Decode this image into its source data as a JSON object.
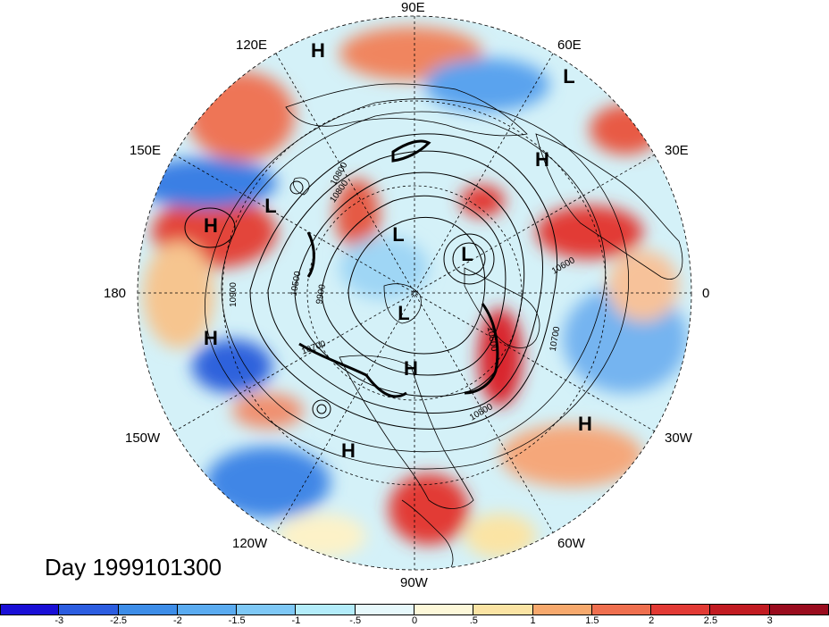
{
  "title": "Day 1999101300",
  "longitude_labels": [
    "90E",
    "60E",
    "30E",
    "0",
    "30W",
    "60W",
    "90W",
    "120W",
    "150W",
    "180",
    "150E",
    "120E"
  ],
  "pressure_systems": [
    "H",
    "L",
    "H",
    "L",
    "H",
    "L",
    "L",
    "H",
    "L",
    "H",
    "H",
    "H"
  ],
  "contour_labels": [
    "10800",
    "10500",
    "10900",
    "9900",
    "10700",
    "10800",
    "10600",
    "10700",
    "10500",
    "10800"
  ],
  "colorbar": {
    "ticks": [
      "-3",
      "-2.5",
      "-2",
      "-1.5",
      "-1",
      "-.5",
      "0",
      ".5",
      "1",
      "1.5",
      "2",
      "2.5",
      "3"
    ],
    "colors": [
      "#1a0fd6",
      "#2c5de0",
      "#3d8de8",
      "#5aabf0",
      "#7ec8f6",
      "#b3ecfa",
      "#e6f8fb",
      "#fdf8d9",
      "#fbe4a4",
      "#f7a96d",
      "#ef6f4f",
      "#e23a35",
      "#c21b22",
      "#9a0c1e"
    ]
  }
}
